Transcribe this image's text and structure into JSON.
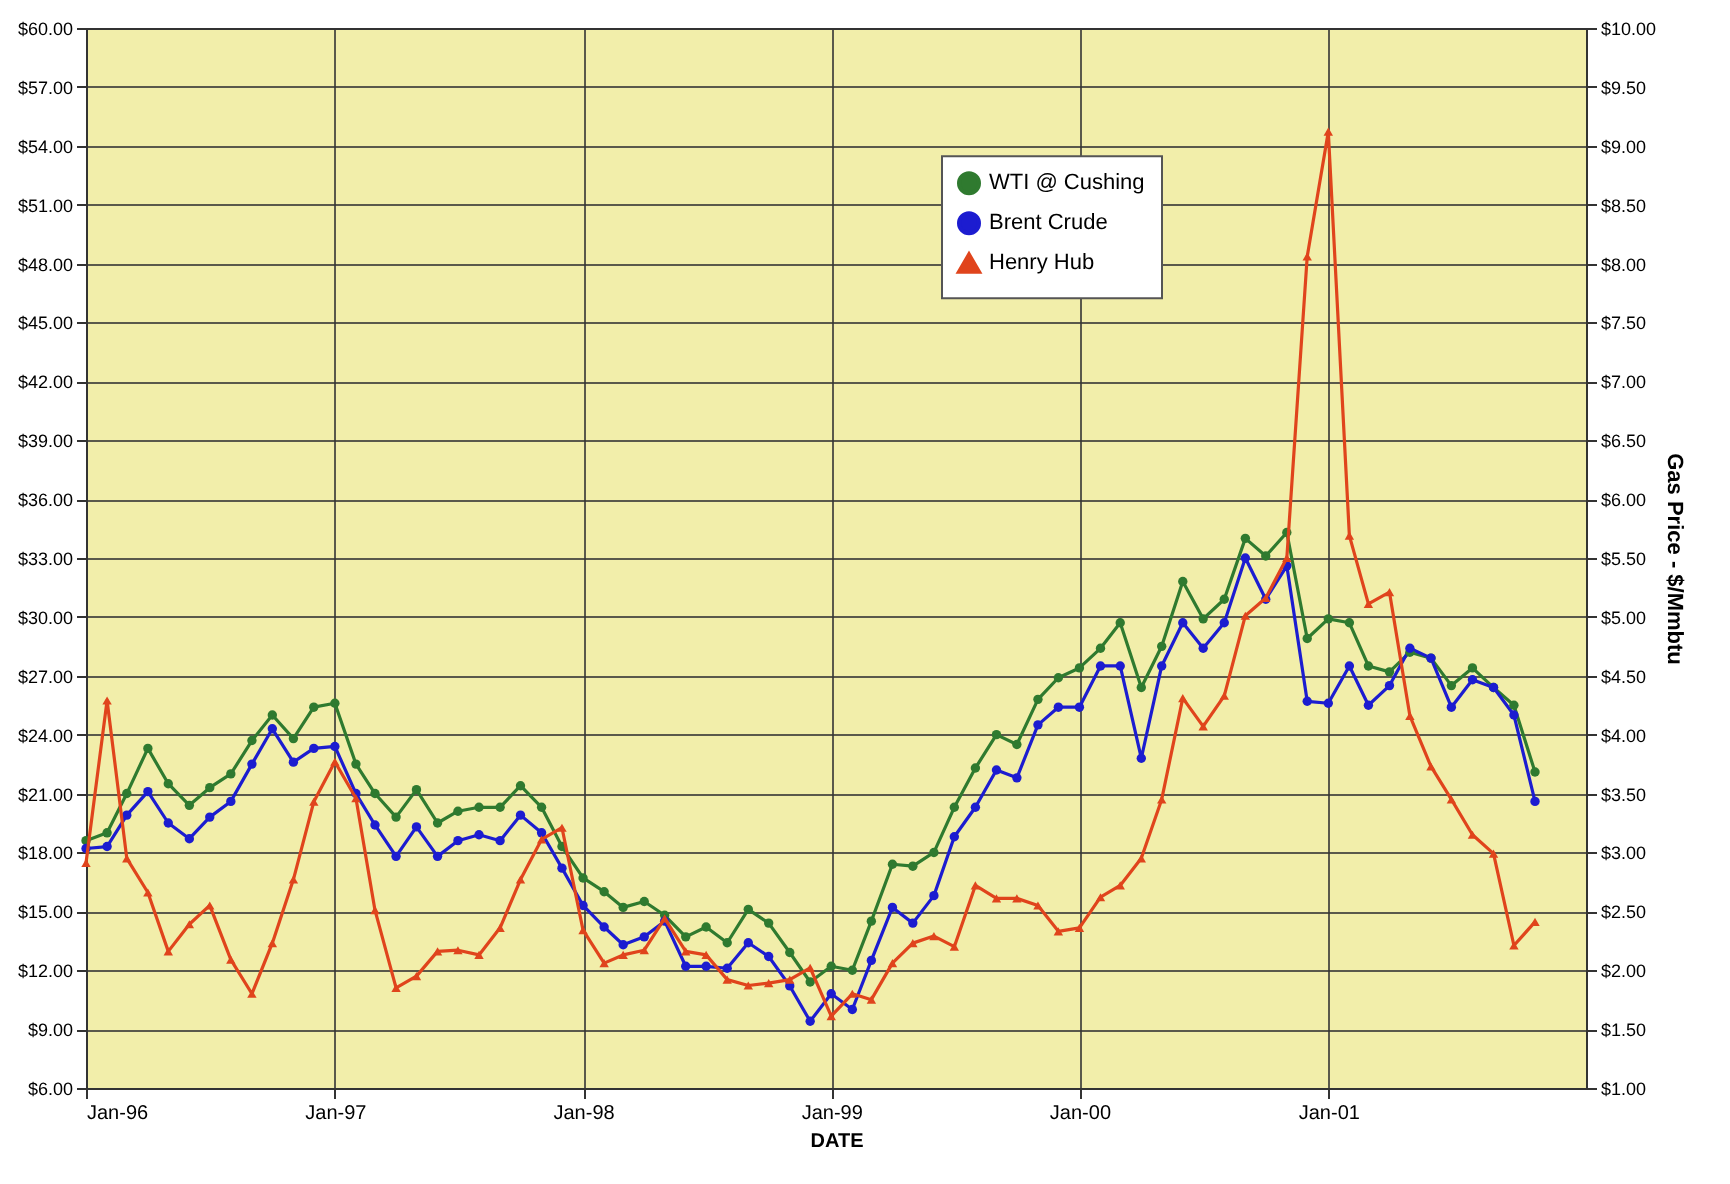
{
  "chart_data": {
    "type": "line",
    "xlabel": "DATE",
    "y2label": "Gas Price - $/Mmbtu",
    "x": [
      "1996-01",
      "1996-02",
      "1996-03",
      "1996-04",
      "1996-05",
      "1996-06",
      "1996-07",
      "1996-08",
      "1996-09",
      "1996-10",
      "1996-11",
      "1996-12",
      "1997-01",
      "1997-02",
      "1997-03",
      "1997-04",
      "1997-05",
      "1997-06",
      "1997-07",
      "1997-08",
      "1997-09",
      "1997-10",
      "1997-11",
      "1997-12",
      "1998-01",
      "1998-02",
      "1998-03",
      "1998-04",
      "1998-05",
      "1998-06",
      "1998-07",
      "1998-08",
      "1998-09",
      "1998-10",
      "1998-11",
      "1998-12",
      "1999-01",
      "1999-02",
      "1999-03",
      "1999-04",
      "1999-05",
      "1999-06",
      "1999-07",
      "1999-08",
      "1999-09",
      "1999-10",
      "1999-11",
      "1999-12",
      "2000-01",
      "2000-02",
      "2000-03",
      "2000-04",
      "2000-05",
      "2000-06",
      "2000-07",
      "2000-08",
      "2000-09",
      "2000-10",
      "2000-11",
      "2000-12",
      "2001-01",
      "2001-02",
      "2001-03",
      "2001-04",
      "2001-05",
      "2001-06",
      "2001-07",
      "2001-08",
      "2001-09",
      "2001-10",
      "2001-11"
    ],
    "series": [
      {
        "name": "WTI @ Cushing",
        "color": "#2f7a2f",
        "marker": "circle",
        "values": [
          18.6,
          19.0,
          21.0,
          23.3,
          21.5,
          20.4,
          21.3,
          22.0,
          23.7,
          25.0,
          23.8,
          25.4,
          25.6,
          22.5,
          21.0,
          19.8,
          21.2,
          19.5,
          20.1,
          20.3,
          20.3,
          21.4,
          20.3,
          18.3,
          16.7,
          16.0,
          15.2,
          15.5,
          14.8,
          13.7,
          14.2,
          13.4,
          15.1,
          14.4,
          12.9,
          11.4,
          12.2,
          12.0,
          14.5,
          17.4,
          17.3,
          18.0,
          20.3,
          22.3,
          24.0,
          23.5,
          25.8,
          26.9,
          27.4,
          28.4,
          29.7,
          26.4,
          28.5,
          31.8,
          29.9,
          30.9,
          34.0,
          33.1,
          34.3,
          28.9,
          29.9,
          29.7,
          27.5,
          27.2,
          28.2,
          27.9,
          26.5,
          27.4,
          26.4,
          25.5,
          22.1
        ]
      },
      {
        "name": "Brent Crude",
        "color": "#1c1cd0",
        "marker": "circle",
        "values": [
          18.2,
          18.3,
          19.9,
          21.1,
          19.5,
          18.7,
          19.8,
          20.6,
          22.5,
          24.3,
          22.6,
          23.3,
          23.4,
          21.0,
          19.4,
          17.8,
          19.3,
          17.8,
          18.6,
          18.9,
          18.6,
          19.9,
          19.0,
          17.2,
          15.3,
          14.2,
          13.3,
          13.7,
          14.5,
          12.2,
          12.2,
          12.1,
          13.4,
          12.7,
          11.2,
          9.4,
          10.8,
          10.0,
          12.5,
          15.2,
          14.4,
          15.8,
          18.8,
          20.3,
          22.2,
          21.8,
          24.5,
          25.4,
          25.4,
          27.5,
          27.5,
          22.8,
          27.5,
          29.7,
          28.4,
          29.7,
          33.0,
          30.9,
          32.6,
          25.7,
          25.6,
          27.5,
          25.5,
          26.5,
          28.4,
          27.9,
          25.4,
          26.8,
          26.4,
          25.0,
          20.6
        ]
      },
      {
        "name": "Henry Hub",
        "color": "#e0441c",
        "marker": "triangle",
        "axis": "y2",
        "values": [
          2.91,
          4.29,
          2.95,
          2.66,
          2.16,
          2.39,
          2.55,
          2.09,
          1.8,
          2.23,
          2.77,
          3.43,
          3.77,
          3.46,
          2.51,
          1.85,
          1.95,
          2.16,
          2.17,
          2.13,
          2.36,
          2.77,
          3.11,
          3.21,
          2.34,
          2.06,
          2.13,
          2.17,
          2.44,
          2.16,
          2.13,
          1.92,
          1.87,
          1.89,
          1.92,
          2.02,
          1.61,
          1.8,
          1.75,
          2.06,
          2.23,
          2.29,
          2.2,
          2.72,
          2.61,
          2.61,
          2.55,
          2.33,
          2.36,
          2.62,
          2.72,
          2.95,
          3.45,
          4.31,
          4.07,
          4.33,
          5.01,
          5.16,
          5.5,
          8.06,
          9.12,
          5.69,
          5.11,
          5.21,
          4.16,
          3.73,
          3.45,
          3.15,
          2.99,
          2.21,
          2.41
        ]
      }
    ],
    "xlim": [
      "1996-01",
      "2002-01-15"
    ],
    "xticks": [
      {
        "value": "1996-01",
        "label": "Jan-96"
      },
      {
        "value": "1997-01",
        "label": "Jan-97"
      },
      {
        "value": "1998-01",
        "label": "Jan-98"
      },
      {
        "value": "1999-01",
        "label": "Jan-99"
      },
      {
        "value": "2000-01",
        "label": "Jan-00"
      },
      {
        "value": "2001-01",
        "label": "Jan-01"
      }
    ],
    "ylim": [
      6,
      60
    ],
    "yticks": [
      {
        "value": 6,
        "label": "$6.00"
      },
      {
        "value": 9,
        "label": "$9.00"
      },
      {
        "value": 12,
        "label": "$12.00"
      },
      {
        "value": 15,
        "label": "$15.00"
      },
      {
        "value": 18,
        "label": "$18.00"
      },
      {
        "value": 21,
        "label": "$21.00"
      },
      {
        "value": 24,
        "label": "$24.00"
      },
      {
        "value": 27,
        "label": "$27.00"
      },
      {
        "value": 30,
        "label": "$30.00"
      },
      {
        "value": 33,
        "label": "$33.00"
      },
      {
        "value": 36,
        "label": "$36.00"
      },
      {
        "value": 39,
        "label": "$39.00"
      },
      {
        "value": 42,
        "label": "$42.00"
      },
      {
        "value": 45,
        "label": "$45.00"
      },
      {
        "value": 48,
        "label": "$48.00"
      },
      {
        "value": 51,
        "label": "$51.00"
      },
      {
        "value": 54,
        "label": "$54.00"
      },
      {
        "value": 57,
        "label": "$57.00"
      },
      {
        "value": 60,
        "label": "$60.00"
      }
    ],
    "y2lim": [
      1,
      10
    ],
    "y2ticks": [
      {
        "value": 1,
        "label": "$1.00"
      },
      {
        "value": 1.5,
        "label": "$1.50"
      },
      {
        "value": 2,
        "label": "$2.00"
      },
      {
        "value": 2.5,
        "label": "$2.50"
      },
      {
        "value": 3,
        "label": "$3.00"
      },
      {
        "value": 3.5,
        "label": "$3.50"
      },
      {
        "value": 4,
        "label": "$4.00"
      },
      {
        "value": 4.5,
        "label": "$4.50"
      },
      {
        "value": 5,
        "label": "$5.00"
      },
      {
        "value": 5.5,
        "label": "$5.50"
      },
      {
        "value": 6,
        "label": "$6.00"
      },
      {
        "value": 6.5,
        "label": "$6.50"
      },
      {
        "value": 7,
        "label": "$7.00"
      },
      {
        "value": 7.5,
        "label": "$7.50"
      },
      {
        "value": 8,
        "label": "$8.00"
      },
      {
        "value": 8.5,
        "label": "$8.50"
      },
      {
        "value": 9,
        "label": "$9.00"
      },
      {
        "value": 9.5,
        "label": "$9.50"
      },
      {
        "value": 10,
        "label": "$10.00"
      }
    ],
    "grid": true,
    "legend": "top",
    "line_style": "solid"
  }
}
